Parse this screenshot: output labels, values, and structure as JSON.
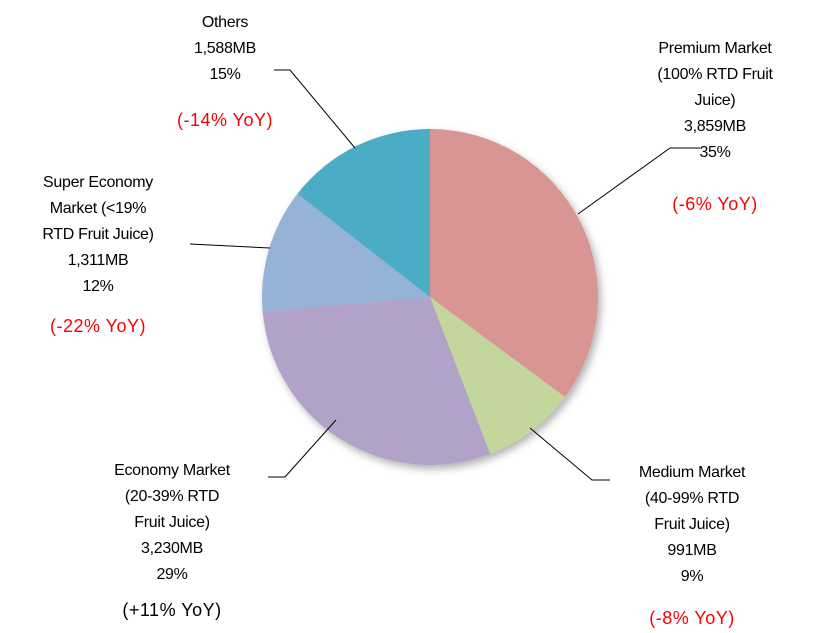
{
  "chart_data": {
    "type": "pie",
    "categories": [
      "Premium Market (100% RTD Fruit Juice)",
      "Medium Market (40-99% RTD Fruit Juice)",
      "Economy Market (20-39% RTD Fruit Juice)",
      "Super Economy Market (<19% RTD Fruit Juice)",
      "Others"
    ],
    "values": [
      3859,
      991,
      3230,
      1311,
      1588
    ],
    "value_labels": [
      "3,859MB",
      "991MB",
      "3,230MB",
      "1,311MB",
      "1,588MB"
    ],
    "percent_labels": [
      "35%",
      "9%",
      "29%",
      "12%",
      "15%"
    ],
    "yoy_labels": [
      "(-6% YoY)",
      "(-8% YoY)",
      "(+11% YoY)",
      "(-22% YoY)",
      "(-14% YoY)"
    ],
    "colors": [
      "#d99594",
      "#c3d69b",
      "#b2a2c7",
      "#95b3d7",
      "#4bacc6"
    ],
    "yoy_colors": [
      "#ff0000",
      "#ff0000",
      "#000000",
      "#ff0000",
      "#ff0000"
    ]
  }
}
